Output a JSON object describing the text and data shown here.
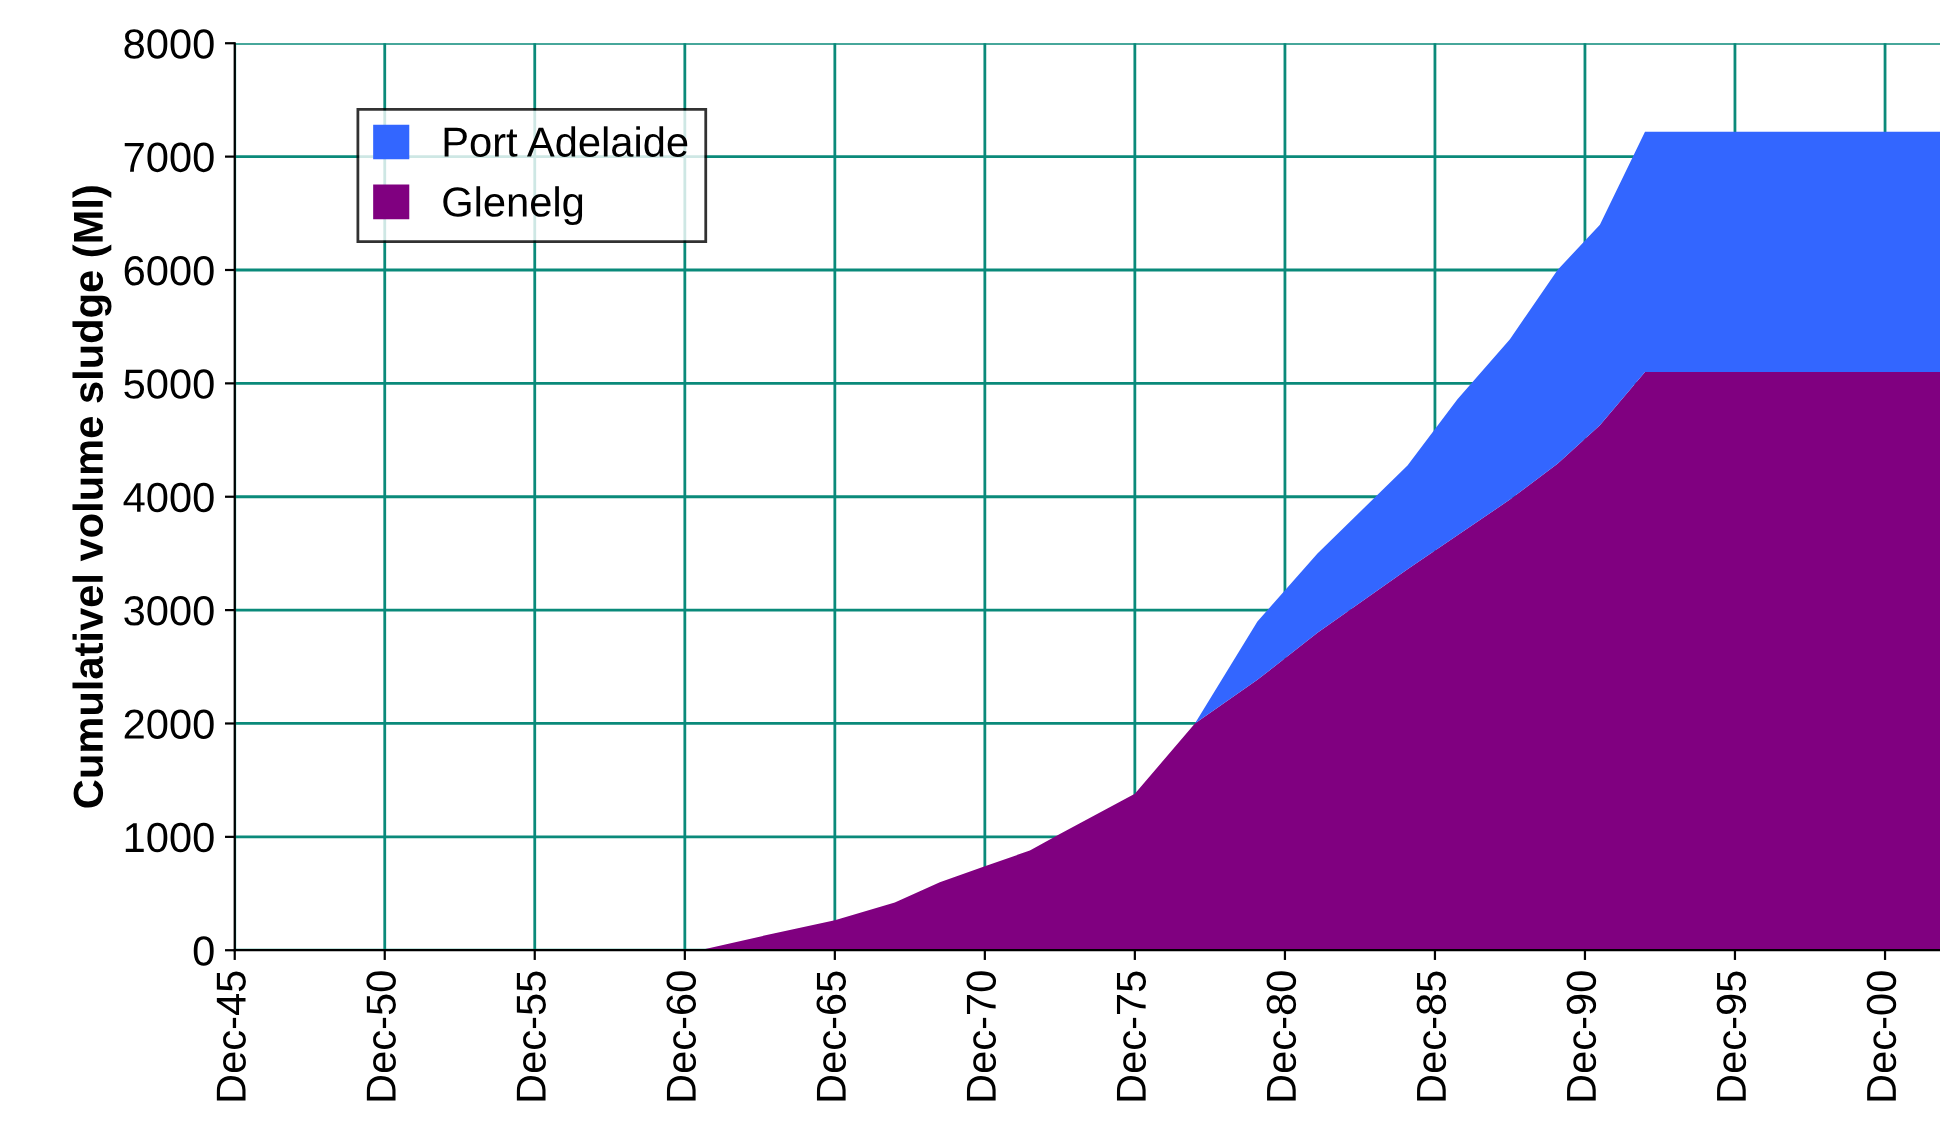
{
  "chart_data": {
    "type": "area",
    "stacked": true,
    "ylabel": "Cumulativel volume sludge (Ml)",
    "x": [
      "1961-06",
      "1963-12",
      "1965-12",
      "1967-12",
      "1969-06",
      "1970-12",
      "1972-06",
      "1973-06",
      "1975-12",
      "1977-12",
      "1980-01",
      "1982-01",
      "1985-01",
      "1986-09",
      "1988-06",
      "1990-01",
      "1991-06",
      "1992-12",
      "2002-10"
    ],
    "series": [
      {
        "name": "Glenelg",
        "color": "#800080",
        "values": [
          0,
          150,
          265,
          420,
          600,
          740,
          880,
          1025,
          1380,
          2000,
          2385,
          2800,
          3360,
          3660,
          3975,
          4290,
          4630,
          5100,
          5100
        ]
      },
      {
        "name": "Port Adelaide",
        "color": "#3366ff",
        "values": [
          0,
          0,
          0,
          0,
          0,
          0,
          0,
          0,
          0,
          0,
          515,
          700,
          915,
          1200,
          1415,
          1710,
          1770,
          2120,
          2120
        ]
      }
    ],
    "xlim": [
      "1945-12",
      "2002-10"
    ],
    "xticks": [
      {
        "value": "1945-12",
        "label": "Dec-45"
      },
      {
        "value": "1950-12",
        "label": "Dec-50"
      },
      {
        "value": "1955-12",
        "label": "Dec-55"
      },
      {
        "value": "1960-12",
        "label": "Dec-60"
      },
      {
        "value": "1965-12",
        "label": "Dec-65"
      },
      {
        "value": "1970-12",
        "label": "Dec-70"
      },
      {
        "value": "1975-12",
        "label": "Dec-75"
      },
      {
        "value": "1980-12",
        "label": "Dec-80"
      },
      {
        "value": "1985-12",
        "label": "Dec-85"
      },
      {
        "value": "1990-12",
        "label": "Dec-90"
      },
      {
        "value": "1995-12",
        "label": "Dec-95"
      },
      {
        "value": "2000-12",
        "label": "Dec-00"
      }
    ],
    "ylim": [
      0,
      8000
    ],
    "yticks": [
      0,
      1000,
      2000,
      3000,
      4000,
      5000,
      6000,
      7000,
      8000
    ],
    "grid": true,
    "legend": "top left"
  }
}
